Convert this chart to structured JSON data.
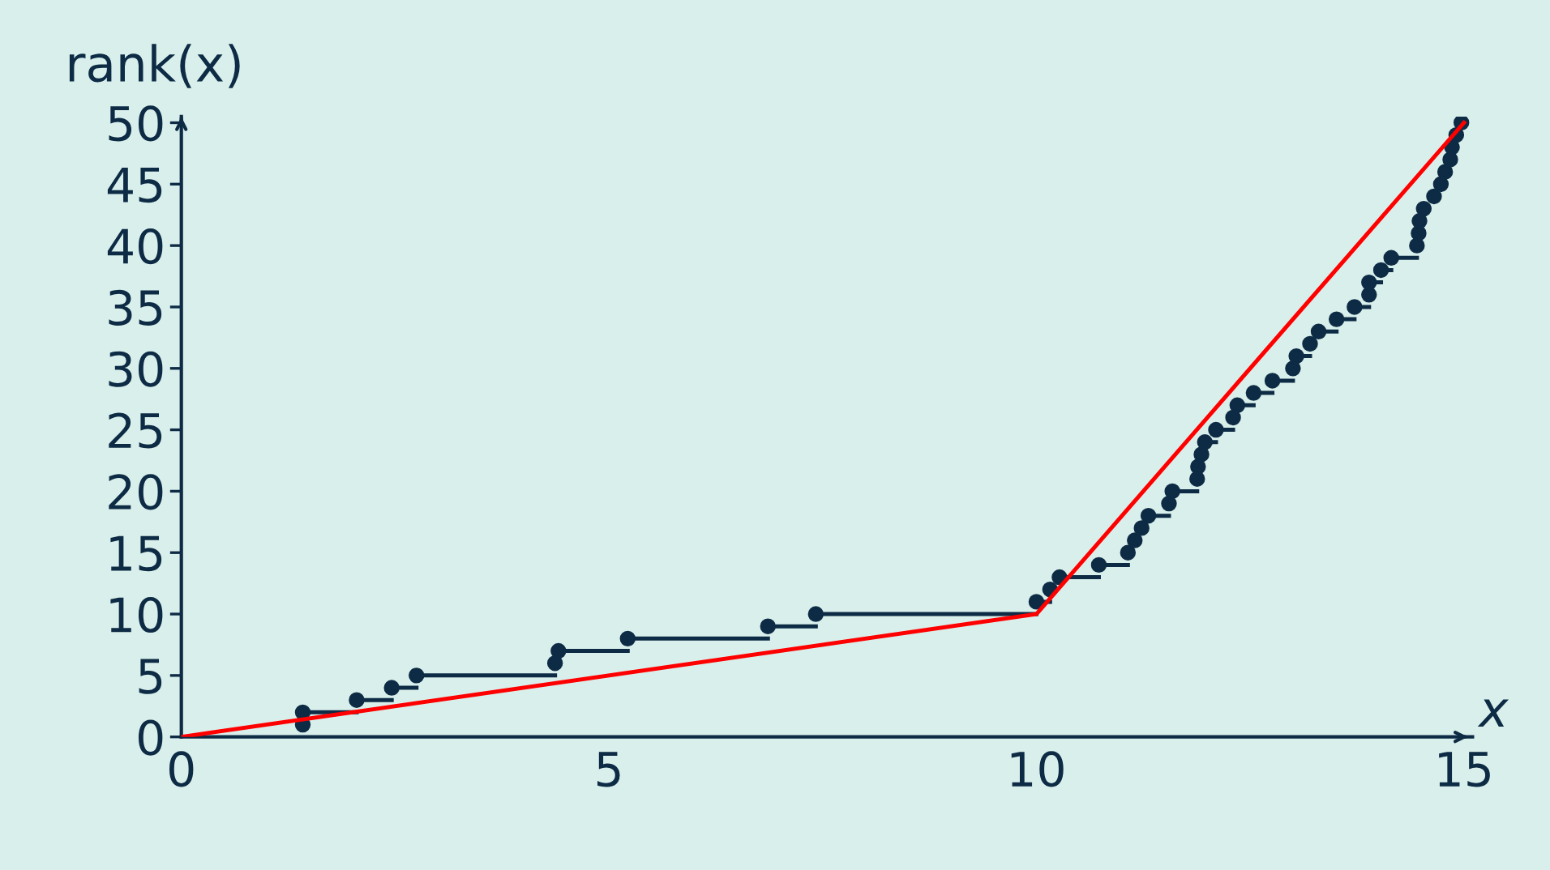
{
  "chart_data": {
    "type": "step",
    "xlabel": "x",
    "ylabel": "rank(x)",
    "xlim": [
      0,
      15.1
    ],
    "ylim": [
      0,
      50.5
    ],
    "xticks": [
      0,
      5,
      10,
      15
    ],
    "yticks": [
      0,
      5,
      10,
      15,
      20,
      25,
      30,
      35,
      40,
      45,
      50
    ],
    "grid": false,
    "series": [
      {
        "color": "#0d2b45",
        "x": [
          1.42,
          2.05,
          2.46,
          2.75,
          4.37,
          4.41,
          5.22,
          6.86,
          7.42,
          10.0,
          10.16,
          10.27,
          10.73,
          11.07,
          11.15,
          11.23,
          11.31,
          11.55,
          11.59,
          11.88,
          11.89,
          11.93,
          11.97,
          12.1,
          12.3,
          12.35,
          12.54,
          12.76,
          13.0,
          13.04,
          13.2,
          13.3,
          13.51,
          13.72,
          13.89,
          14.03,
          14.15,
          14.45,
          14.97
        ],
        "values": [
          2,
          3,
          4,
          5,
          null,
          7,
          8,
          9,
          10,
          11,
          null,
          13,
          14,
          null,
          null,
          null,
          18,
          null,
          20,
          null,
          null,
          null,
          24,
          25,
          null,
          27,
          28,
          29,
          null,
          31,
          null,
          33,
          34,
          35,
          37,
          38,
          39,
          null,
          50
        ]
      },
      {
        "type": "scatter",
        "color": "#0d2b45",
        "marker": "circle",
        "x": [
          1.42,
          1.42,
          2.05,
          2.46,
          2.75,
          4.37,
          4.41,
          5.22,
          6.86,
          7.42,
          10.0,
          10.16,
          10.27,
          10.73,
          11.07,
          11.15,
          11.23,
          11.31,
          11.55,
          11.59,
          11.88,
          11.89,
          11.93,
          11.97,
          12.1,
          12.3,
          12.35,
          12.54,
          12.76,
          13.0,
          13.04,
          13.2,
          13.3,
          13.51,
          13.72,
          13.89,
          13.89,
          14.03,
          14.15,
          14.45,
          14.47,
          14.48,
          14.53,
          14.65,
          14.73,
          14.78,
          14.84,
          14.86,
          14.91
        ],
        "values": [
          1,
          2,
          3,
          4,
          5,
          6,
          7,
          8,
          9,
          10,
          11,
          12,
          13,
          14,
          15,
          16,
          17,
          18,
          19,
          20,
          21,
          22,
          23,
          24,
          25,
          26,
          27,
          28,
          29,
          30,
          31,
          32,
          33,
          34,
          35,
          36,
          37,
          38,
          39,
          40,
          41,
          42,
          43,
          44,
          45,
          46,
          47,
          48,
          49
        ]
      },
      {
        "type": "line",
        "color": "#ff0000",
        "x": [
          0,
          10,
          15
        ],
        "values": [
          0,
          10,
          50
        ]
      }
    ]
  }
}
